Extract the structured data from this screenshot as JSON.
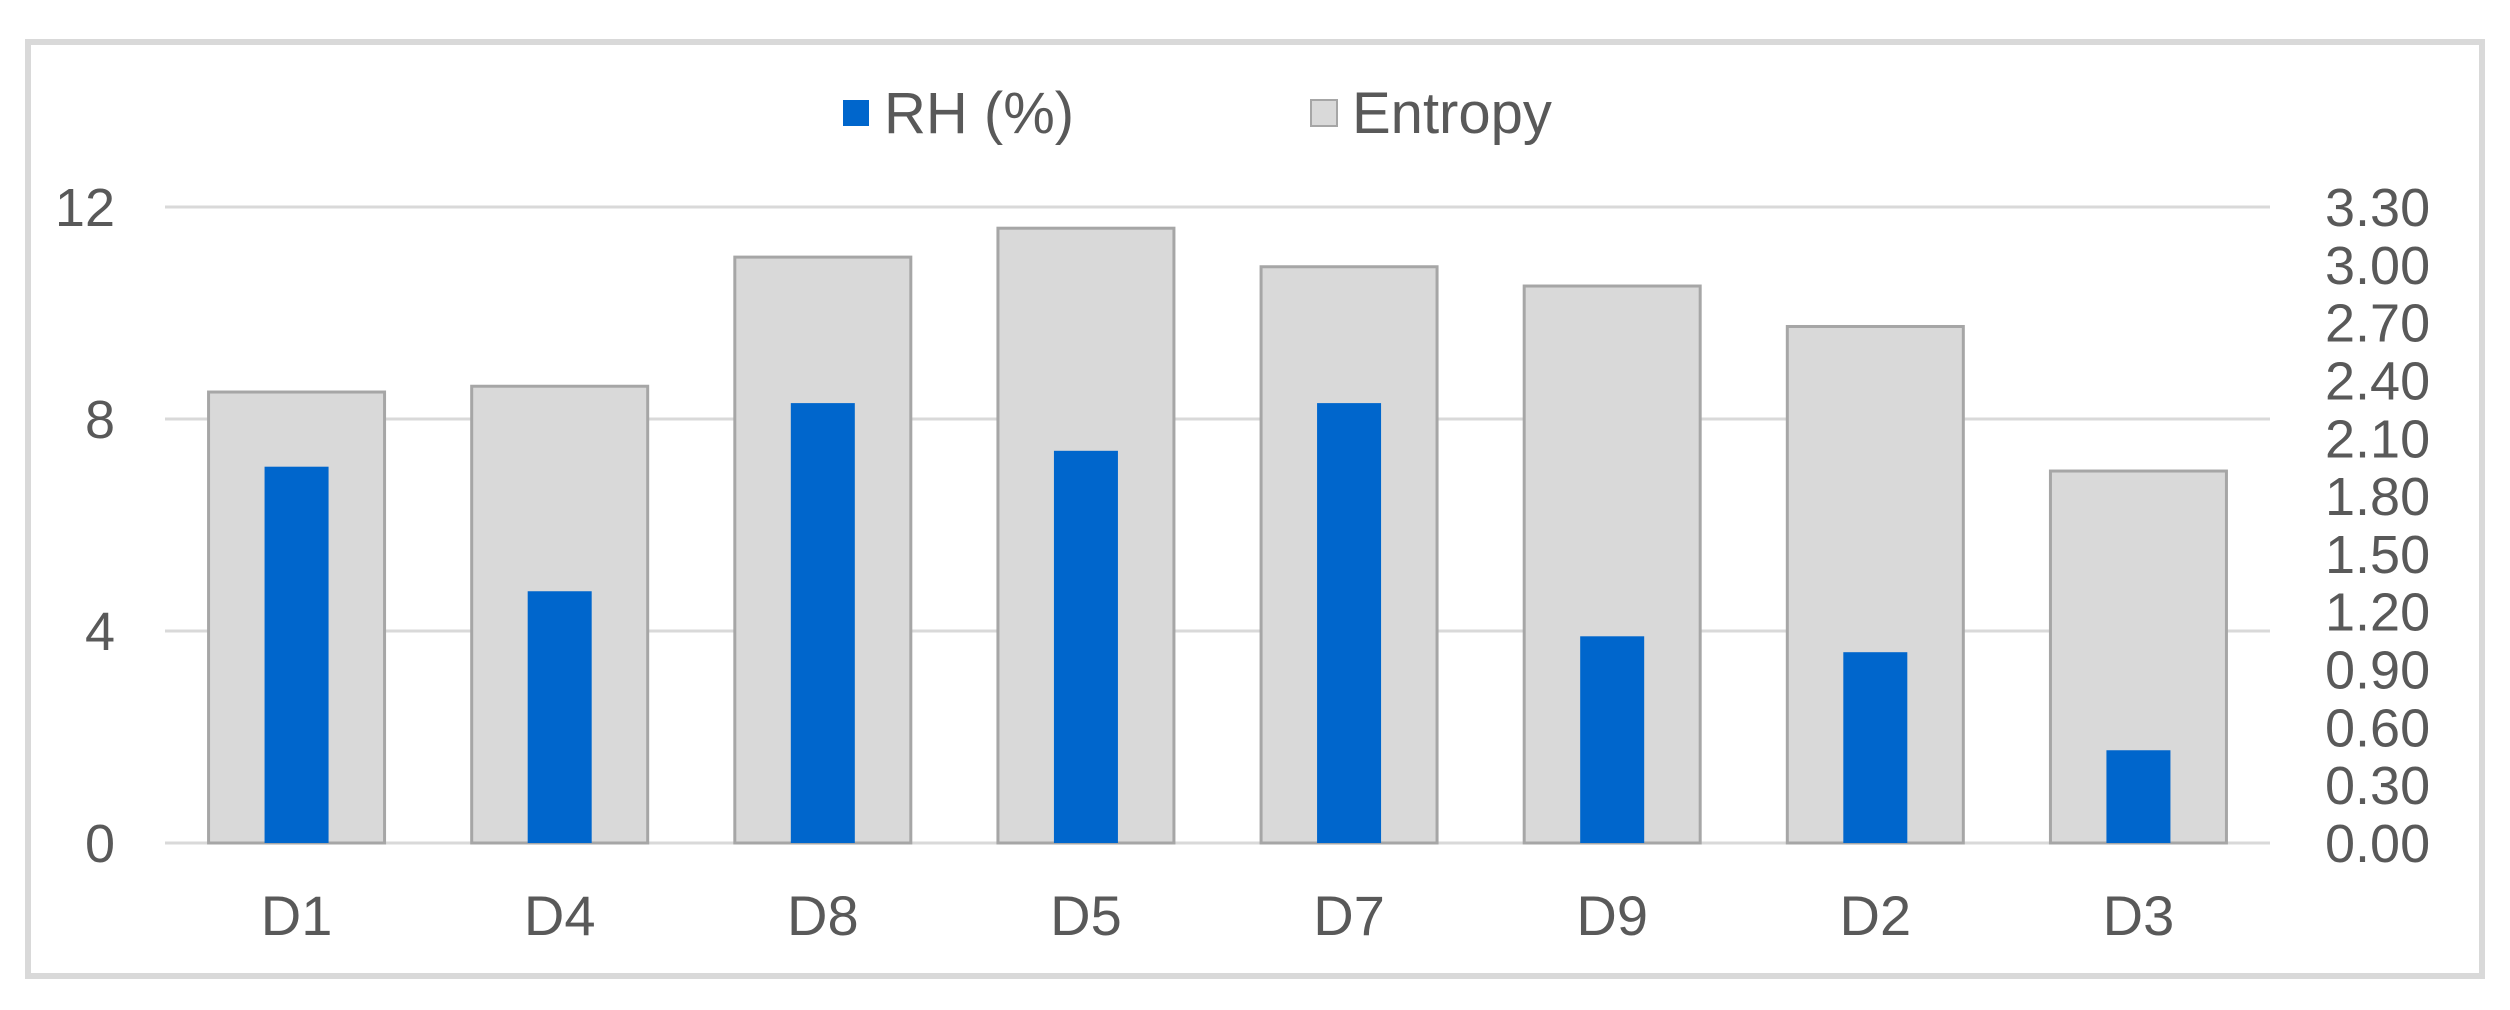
{
  "chart_data": {
    "type": "bar",
    "categories": [
      "D1",
      "D4",
      "D8",
      "D5",
      "D7",
      "D9",
      "D2",
      "D3"
    ],
    "series": [
      {
        "name": "RH (%)",
        "axis": "left",
        "color": "#0066cc",
        "values": [
          7.1,
          4.75,
          8.3,
          7.4,
          8.3,
          3.9,
          3.6,
          1.75
        ]
      },
      {
        "name": "Entropy",
        "axis": "right",
        "color": "#d9d9d9",
        "values": [
          2.34,
          2.37,
          3.04,
          3.19,
          2.99,
          2.89,
          2.68,
          1.93
        ]
      }
    ],
    "y_left": {
      "ylim": [
        0,
        12
      ],
      "ticks": [
        "0",
        "4",
        "8",
        "12"
      ]
    },
    "y_right": {
      "ylim": [
        0,
        3.3
      ],
      "ticks": [
        "0.00",
        "0.30",
        "0.60",
        "0.90",
        "1.20",
        "1.50",
        "1.80",
        "2.10",
        "2.40",
        "2.70",
        "3.00",
        "3.30"
      ]
    },
    "grid": true,
    "legend": {
      "position": "top-center"
    },
    "xlabel": "",
    "ylabel": ""
  }
}
